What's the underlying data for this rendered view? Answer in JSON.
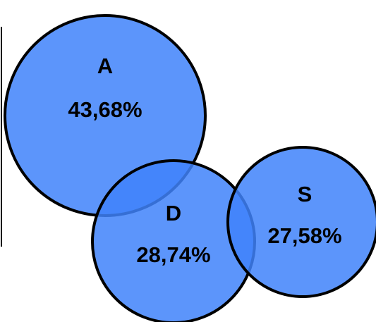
{
  "colors": {
    "circle_fill": "#3f83fa",
    "circle_fill_opacity": 0.85,
    "outline": "#000000"
  },
  "sets": [
    {
      "id": "A",
      "name": "A",
      "value": "43,68%"
    },
    {
      "id": "D",
      "name": "D",
      "value": "28,74%"
    },
    {
      "id": "S",
      "name": "S",
      "value": "27,58%"
    }
  ]
}
